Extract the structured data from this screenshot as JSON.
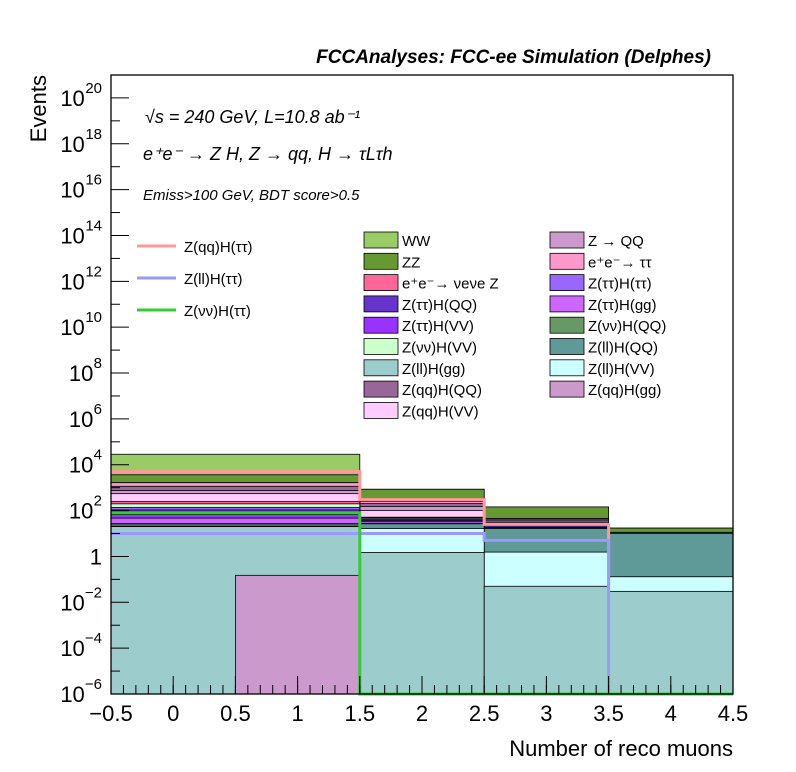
{
  "chart_data": {
    "type": "bar",
    "title": "FCCAnalyses: FCC-ee Simulation (Delphes)",
    "xlabel": "Number of reco muons",
    "ylabel": "Events",
    "log_y": true,
    "xlim": [
      -0.5,
      4.5
    ],
    "ylim": [
      1e-06,
      1e+21
    ],
    "grid": false,
    "x_ticks": [
      "−0.5",
      "0",
      "0.5",
      "1",
      "1.5",
      "2",
      "2.5",
      "3",
      "3.5",
      "4",
      "4.5"
    ],
    "y_tick_mantissa": "10",
    "y_tick_exponents": [
      "−6",
      "−4",
      "−2",
      "",
      "2",
      "4",
      "6",
      "8",
      "10",
      "12",
      "14",
      "16",
      "18",
      "20"
    ],
    "y_tick_one": "1",
    "bin_edges": [
      -0.5,
      1.5,
      2.5,
      3.5,
      4.5
    ],
    "annotations": {
      "line1": "√s = 240 GeV, L=10.8 ab⁻¹",
      "line2": "e⁺e⁻ → Z H, Z → qq, H → τLτh",
      "line3": "Emiss>100 GeV, BDT score>0.5"
    },
    "stack_bottom_up": [
      {
        "name": "Z(ll)H(gg)",
        "color": "#9ccccc",
        "values": [
          20.0,
          1.5,
          0.05,
          0.03
        ]
      },
      {
        "name": "Z(ll)H(VV)",
        "color": "#ccffff",
        "values": [
          1.0,
          15.0,
          1.5,
          0.1
        ]
      },
      {
        "name": "Z(ll)H(QQ)",
        "color": "#5f9998",
        "values": [
          5.0,
          10.0,
          15.0,
          10.0
        ]
      },
      {
        "name": "Z(νν)H(QQ)",
        "color": "#669966",
        "values": [
          1.0,
          1.0,
          1.0,
          1.0
        ]
      },
      {
        "name": "Z(ττ)H(gg)",
        "color": "#cc66ff",
        "values": [
          20.0,
          5.0,
          0.5,
          0.01
        ]
      },
      {
        "name": "Z(ττ)H(VV)",
        "color": "#9933ff",
        "values": [
          20.0,
          5.0,
          0.4,
          0.01
        ]
      },
      {
        "name": "Z(ττ)H(QQ)",
        "color": "#6633cc",
        "values": [
          40.0,
          5.0,
          3.0,
          0.01
        ]
      },
      {
        "name": "Z(ττ)H(ττ)",
        "color": "#9966ff",
        "values": [
          30.0,
          2.0,
          1.0,
          0.01
        ]
      },
      {
        "name": "Z(νν)H(VV)",
        "color": "#ccffcc",
        "values": [
          60.0,
          5.0,
          1.0,
          0.01
        ]
      },
      {
        "name": "e⁺e⁻→ νeνe Z",
        "color": "#ff6699",
        "values": [
          50.0,
          2.0,
          1.5,
          0.01
        ]
      },
      {
        "name": "Z(qq)H(VV)",
        "color": "#ffccff",
        "values": [
          300.0,
          50.0,
          5.0,
          0.01
        ]
      },
      {
        "name": "Z(qq)H(gg)",
        "color": "#cc99cc",
        "values": [
          200.0,
          50.0,
          5.0,
          0.01
        ]
      },
      {
        "name": "Z(qq)H(QQ)",
        "color": "#996699",
        "values": [
          400.0,
          50.0,
          5.0,
          0.01
        ]
      },
      {
        "name": "e⁺e⁻→ ττ",
        "color": "#ff99cc",
        "values": [
          500.0,
          50.0,
          5.0,
          0.01
        ]
      },
      {
        "name": "Z → QQ",
        "color": "#cc99cc",
        "values": [
          0.15,
          1e-06,
          1e-06,
          1e-06
        ]
      },
      {
        "name": "ZZ",
        "color": "#669933",
        "values": [
          2000.0,
          600.0,
          100.0,
          6.0
        ]
      },
      {
        "name": "WW",
        "color": "#99cc66",
        "values": [
          25000.0,
          1e-06,
          1e-06,
          1e-06
        ]
      }
    ],
    "stack_overlays": [
      {
        "name": "Z → QQ",
        "bin": [
          0.5,
          1.5
        ],
        "value": 0.15,
        "color": "#cc99cc"
      }
    ],
    "signal_lines": [
      {
        "name": "Z(qq)H(ττ)",
        "color": "#ff9999",
        "values": [
          5000.0,
          300.0,
          25.0,
          1e-06
        ]
      },
      {
        "name": "Z(ll)H(ττ)",
        "color": "#9999ff",
        "values": [
          10.0,
          10.0,
          5.0,
          1e-06
        ]
      },
      {
        "name": "Z(νν)H(ττ)",
        "color": "#33cc33",
        "values": [
          80.0,
          1e-06,
          1e-06,
          1e-06
        ]
      }
    ],
    "legend_signals": [
      "Z(qq)H(ττ)",
      "Z(ll)H(ττ)",
      "Z(νν)H(ττ)"
    ],
    "legend_backgrounds_col1": [
      {
        "name": "WW",
        "color": "#99cc66"
      },
      {
        "name": "ZZ",
        "color": "#669933"
      },
      {
        "name": "e⁺e⁻→ νeνe Z",
        "color": "#ff6699"
      },
      {
        "name": "Z(ττ)H(QQ)",
        "color": "#6633cc"
      },
      {
        "name": "Z(ττ)H(VV)",
        "color": "#9933ff"
      },
      {
        "name": "Z(νν)H(VV)",
        "color": "#ccffcc"
      },
      {
        "name": "Z(ll)H(gg)",
        "color": "#9ccccc"
      },
      {
        "name": "Z(qq)H(QQ)",
        "color": "#996699"
      },
      {
        "name": "Z(qq)H(VV)",
        "color": "#ffccff"
      }
    ],
    "legend_backgrounds_col2": [
      {
        "name": "Z → QQ",
        "color": "#cc99cc"
      },
      {
        "name": "e⁺e⁻→ ττ",
        "color": "#ff99cc"
      },
      {
        "name": "Z(ττ)H(ττ)",
        "color": "#9966ff"
      },
      {
        "name": "Z(ττ)H(gg)",
        "color": "#cc66ff"
      },
      {
        "name": "Z(νν)H(QQ)",
        "color": "#669966"
      },
      {
        "name": "Z(ll)H(QQ)",
        "color": "#5f9998"
      },
      {
        "name": "Z(ll)H(VV)",
        "color": "#ccffff"
      },
      {
        "name": "Z(qq)H(gg)",
        "color": "#cc99cc"
      }
    ]
  }
}
